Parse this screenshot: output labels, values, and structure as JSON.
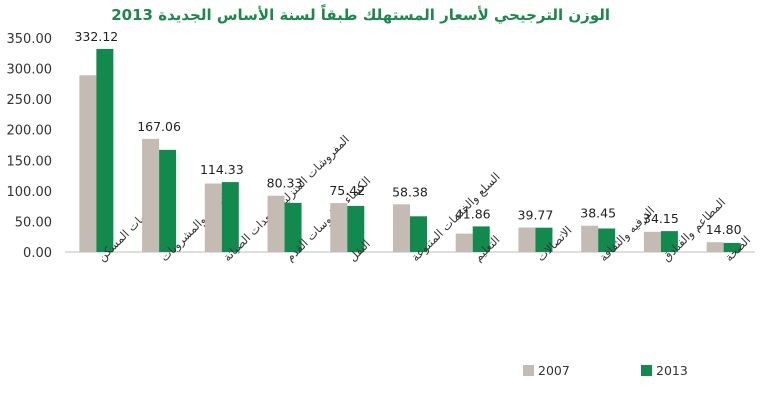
{
  "chart_data": {
    "type": "bar",
    "title": "الوزن الترجيحي لأسعار المستهلك طبقاً لسنة الأساس الجديدة 2013",
    "xlabel": "",
    "ylabel": "",
    "ylim": [
      0,
      350
    ],
    "yticks": [
      "0.00",
      "50.00",
      "100.00",
      "150.00",
      "200.00",
      "250.00",
      "300.00",
      "350.00"
    ],
    "categories": [
      "خدمات المسكن",
      "الأغذية والمشروبات",
      "المفروشات المنزلية ومعدات الصيانة",
      "الكساء وملبوسات القدم",
      "النقل",
      "السلع والخدمات المتنوعة",
      "التعليم",
      "الاتصالات",
      "الترفيه والثقافة",
      "المطاعم والفنادق",
      "الصحة"
    ],
    "series": [
      {
        "name": "2007",
        "color": "#c5bbb5",
        "values": [
          289,
          185,
          112,
          92,
          80,
          78,
          30,
          40,
          43,
          33,
          16
        ]
      },
      {
        "name": "2013",
        "color": "#128a4d",
        "values": [
          332.12,
          167.06,
          114.33,
          80.33,
          75.42,
          58.38,
          41.86,
          39.77,
          38.45,
          34.15,
          14.8
        ]
      }
    ],
    "data_labels": [
      "332.12",
      "167.06",
      "114.33",
      "80.33",
      "75.42",
      "58.38",
      "41.86",
      "39.77",
      "38.45",
      "34.15",
      "14.80"
    ],
    "grid": false,
    "legend_position": "bottom-right"
  }
}
